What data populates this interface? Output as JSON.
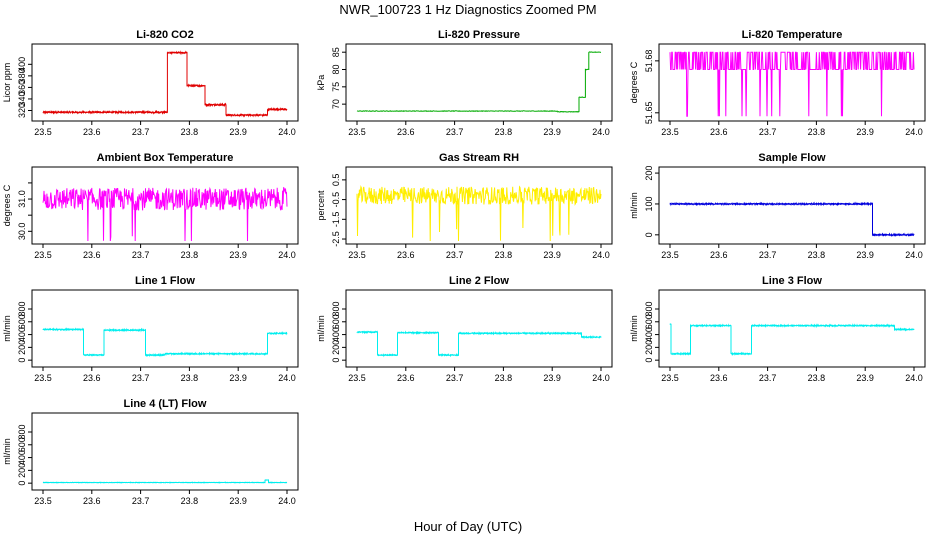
{
  "title": "NWR_100723  1 Hz Diagnostics Zoomed PM",
  "xlabel": "Hour of Day (UTC)",
  "chart_data": [
    {
      "type": "line",
      "title": "Li-820 CO2",
      "ylabel": "Licor ppm",
      "color": "#e00000",
      "xlim": [
        23.5,
        24.0
      ],
      "ylim": [
        307,
        430
      ],
      "yticks": [
        320,
        340,
        360,
        380,
        400
      ],
      "xticks": [
        "23.5",
        "23.6",
        "23.7",
        "23.8",
        "23.9",
        "24.0"
      ],
      "noise": 1.2,
      "segments": [
        [
          23.5,
          23.755,
          317
        ],
        [
          23.755,
          23.795,
          420
        ],
        [
          23.795,
          23.832,
          363
        ],
        [
          23.832,
          23.875,
          330
        ],
        [
          23.875,
          23.96,
          312
        ],
        [
          23.96,
          24.0,
          322
        ]
      ]
    },
    {
      "type": "line",
      "title": "Li-820 Pressure",
      "ylabel": "kPa",
      "color": "#00aa00",
      "xlim": [
        23.5,
        24.0
      ],
      "ylim": [
        66,
        86.5
      ],
      "yticks": [
        70,
        75,
        80,
        85
      ],
      "xticks": [
        "23.5",
        "23.6",
        "23.7",
        "23.8",
        "23.9",
        "24.0"
      ],
      "noise": 0.08,
      "segments": [
        [
          23.5,
          23.91,
          68
        ],
        [
          23.91,
          23.955,
          67.8
        ],
        [
          23.955,
          23.968,
          72
        ],
        [
          23.968,
          23.975,
          80
        ],
        [
          23.975,
          24.0,
          85
        ]
      ]
    },
    {
      "type": "line",
      "title": "Li-820 Temperature",
      "ylabel": "degrees C",
      "color": "#ff00ff",
      "xlim": [
        23.5,
        24.0
      ],
      "ylim": [
        51.647,
        51.688
      ],
      "yticks": [
        51.65,
        51.68
      ],
      "ytick_labels": [
        "51.65",
        "51.68"
      ],
      "xticks": [
        "23.5",
        "23.6",
        "23.7",
        "23.8",
        "23.9",
        "24.0"
      ],
      "noise": 0,
      "segments": [
        [
          23.5,
          24.0,
          51.675
        ]
      ]
    },
    {
      "type": "line",
      "title": "Ambient Box Temperature",
      "ylabel": "degrees C",
      "color": "#ff00ff",
      "xlim": [
        23.5,
        24.0
      ],
      "ylim": [
        29.7,
        31.9
      ],
      "yticks": [
        30.0,
        30.5,
        31.0,
        31.5
      ],
      "ytick_labels": [
        "30.0",
        "",
        "31.0",
        ""
      ],
      "xticks": [
        "23.5",
        "23.6",
        "23.7",
        "23.8",
        "23.9",
        "24.0"
      ],
      "noise": 0.35,
      "segments": [
        [
          23.5,
          24.0,
          31.0
        ]
      ]
    },
    {
      "type": "line",
      "title": "Gas Stream RH",
      "ylabel": "percent",
      "color": "#ffee00",
      "xlim": [
        23.5,
        24.0
      ],
      "ylim": [
        -2.6,
        1.0
      ],
      "yticks": [
        -2.5,
        -1.5,
        -0.5,
        0.5
      ],
      "ytick_labels": [
        "-2.5",
        "-1.5",
        "-0.5",
        "0.5"
      ],
      "xticks": [
        "23.5",
        "23.6",
        "23.7",
        "23.8",
        "23.9",
        "24.0"
      ],
      "noise": 0.45,
      "segments": [
        [
          23.5,
          24.0,
          -0.3
        ]
      ]
    },
    {
      "type": "line",
      "title": "Sample Flow",
      "ylabel": "ml/min",
      "color": "#0000dd",
      "xlim": [
        23.5,
        24.0
      ],
      "ylim": [
        -20,
        210
      ],
      "yticks": [
        0,
        100,
        200
      ],
      "xticks": [
        "23.5",
        "23.6",
        "23.7",
        "23.8",
        "23.9",
        "24.0"
      ],
      "noise": 1.8,
      "segments": [
        [
          23.5,
          23.915,
          100
        ],
        [
          23.915,
          24.0,
          0
        ]
      ]
    },
    {
      "type": "line",
      "title": "Line 1 Flow",
      "ylabel": "ml/min",
      "color": "#00eeee",
      "xlim": [
        23.5,
        24.0
      ],
      "ylim": [
        -60,
        1050
      ],
      "yticks": [
        0,
        200,
        400,
        600,
        800
      ],
      "xticks": [
        "23.5",
        "23.6",
        "23.7",
        "23.8",
        "23.9",
        "24.0"
      ],
      "noise": 8,
      "segments": [
        [
          23.5,
          23.583,
          480
        ],
        [
          23.583,
          23.625,
          80
        ],
        [
          23.625,
          23.71,
          470
        ],
        [
          23.71,
          23.75,
          80
        ],
        [
          23.75,
          23.96,
          100
        ],
        [
          23.96,
          24.0,
          420
        ]
      ]
    },
    {
      "type": "line",
      "title": "Line 2 Flow",
      "ylabel": "ml/min",
      "color": "#00eeee",
      "xlim": [
        23.5,
        24.0
      ],
      "ylim": [
        -60,
        1050
      ],
      "yticks": [
        0,
        200,
        400,
        600,
        800
      ],
      "xticks": [
        "23.5",
        "23.6",
        "23.7",
        "23.8",
        "23.9",
        "24.0"
      ],
      "noise": 8,
      "segments": [
        [
          23.5,
          23.542,
          440
        ],
        [
          23.542,
          23.583,
          80
        ],
        [
          23.583,
          23.667,
          430
        ],
        [
          23.667,
          23.708,
          80
        ],
        [
          23.708,
          23.96,
          420
        ],
        [
          23.96,
          24.0,
          360
        ]
      ]
    },
    {
      "type": "line",
      "title": "Line 3 Flow",
      "ylabel": "ml/min",
      "color": "#00eeee",
      "xlim": [
        23.5,
        24.0
      ],
      "ylim": [
        -60,
        1050
      ],
      "yticks": [
        0,
        200,
        400,
        600,
        800
      ],
      "xticks": [
        "23.5",
        "23.6",
        "23.7",
        "23.8",
        "23.9",
        "24.0"
      ],
      "noise": 8,
      "segments": [
        [
          23.5,
          23.502,
          560
        ],
        [
          23.502,
          23.542,
          100
        ],
        [
          23.542,
          23.625,
          540
        ],
        [
          23.625,
          23.667,
          100
        ],
        [
          23.667,
          23.96,
          540
        ],
        [
          23.96,
          24.0,
          480
        ]
      ]
    },
    {
      "type": "line",
      "title": "Line 4 (LT) Flow",
      "ylabel": "ml/min",
      "color": "#00eeee",
      "xlim": [
        23.5,
        24.0
      ],
      "ylim": [
        -60,
        1050
      ],
      "yticks": [
        0,
        200,
        400,
        600,
        800
      ],
      "xticks": [
        "23.5",
        "23.6",
        "23.7",
        "23.8",
        "23.9",
        "24.0"
      ],
      "noise": 3,
      "segments": [
        [
          23.5,
          23.955,
          10
        ],
        [
          23.955,
          23.962,
          50
        ],
        [
          23.962,
          24.0,
          10
        ]
      ]
    }
  ]
}
